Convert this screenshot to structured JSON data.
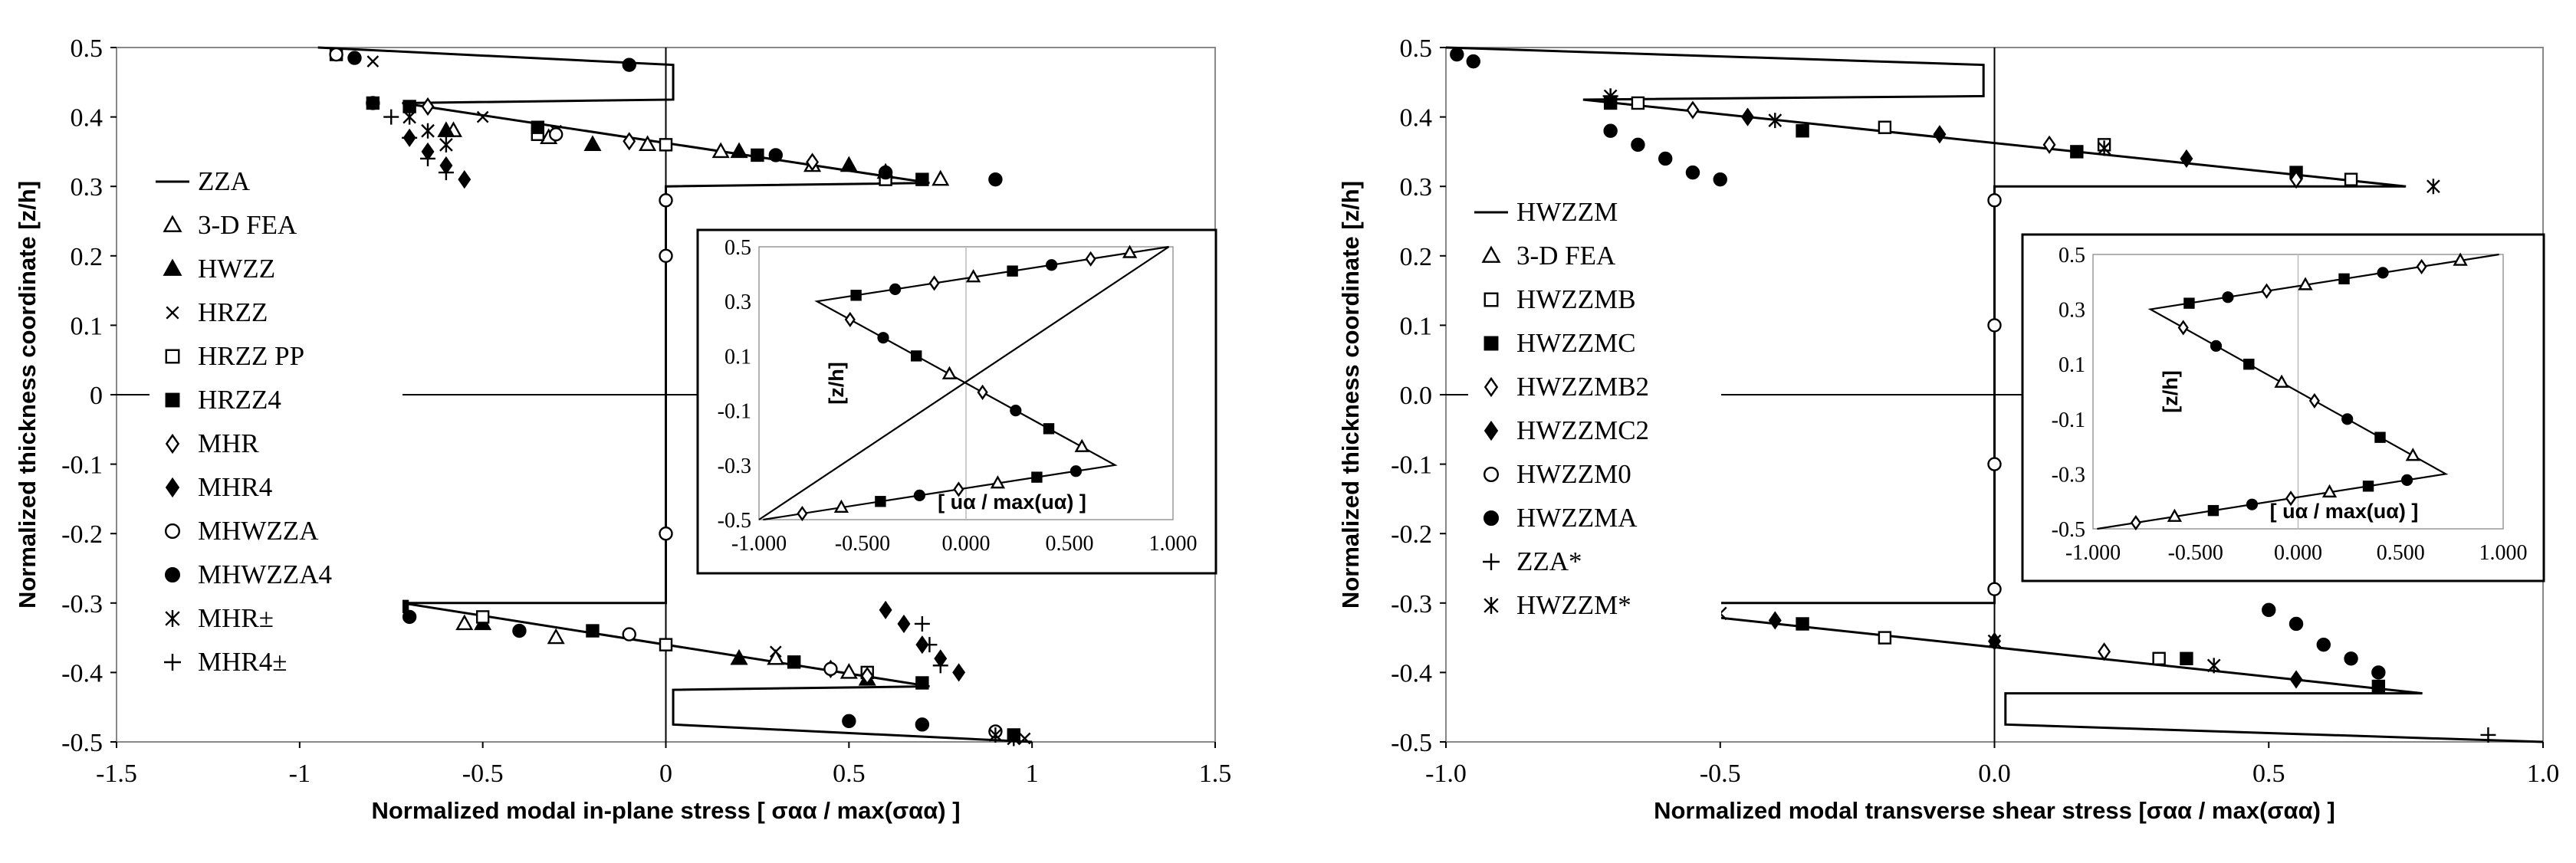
{
  "chart_data": [
    {
      "type": "scatter",
      "xlabel": "Normalized modal  in-plane stress",
      "xlabel_formula": "[ σαα / max(σαα) ]",
      "ylabel": "Normalized thickness coordinate [z/h]",
      "xlim": [
        -1.5,
        1.5
      ],
      "ylim": [
        -0.5,
        0.5
      ],
      "xticks": [
        "-1.5",
        "-1",
        "-0.5",
        "0",
        "0.5",
        "1",
        "1.5"
      ],
      "yticks": [
        "0.5",
        "0.4",
        "0.3",
        "0.2",
        "0.1",
        "0",
        "-0.1",
        "-0.2",
        "-0.3",
        "-0.4",
        "-0.5"
      ],
      "legend": [
        "ZZA",
        "3-D FEA",
        "HWZZ",
        "HRZZ",
        "HRZZ PP",
        "HRZZ4",
        "MHR",
        "MHR4",
        "MHWZZA",
        "MHWZZA4",
        "MHR±",
        "MHR4±"
      ],
      "legend_markers": [
        "line",
        "tri-open",
        "tri-filled",
        "x",
        "square-open",
        "square-filled",
        "diamond-open",
        "diamond-filled",
        "circle-open",
        "circle-filled",
        "star",
        "plus"
      ],
      "legend_placement": "left",
      "series": [
        {
          "name": "ZZA",
          "points": [
            [
              -0.95,
              0.5
            ],
            [
              0.02,
              0.475
            ],
            [
              0.02,
              0.425
            ],
            [
              -0.72,
              0.42
            ],
            [
              0.72,
              0.305
            ],
            [
              0.0,
              0.3
            ],
            [
              0.0,
              -0.3
            ],
            [
              -0.72,
              -0.3
            ],
            [
              0.72,
              -0.42
            ],
            [
              0.02,
              -0.425
            ],
            [
              0.02,
              -0.475
            ],
            [
              1.0,
              -0.5
            ]
          ]
        },
        {
          "name": "3-D FEA",
          "points": [
            [
              -0.58,
              0.38
            ],
            [
              -0.32,
              0.37
            ],
            [
              -0.05,
              0.36
            ],
            [
              0.15,
              0.35
            ],
            [
              0.4,
              0.33
            ],
            [
              0.6,
              0.32
            ],
            [
              0.75,
              0.31
            ],
            [
              -0.55,
              -0.33
            ],
            [
              -0.3,
              -0.35
            ],
            [
              0.3,
              -0.38
            ],
            [
              0.5,
              -0.4
            ]
          ]
        },
        {
          "name": "HWZZ",
          "points": [
            [
              -0.6,
              0.38
            ],
            [
              -0.2,
              0.36
            ],
            [
              0.2,
              0.35
            ],
            [
              0.5,
              0.33
            ],
            [
              -0.5,
              -0.33
            ],
            [
              0.2,
              -0.38
            ],
            [
              0.55,
              -0.41
            ]
          ]
        },
        {
          "name": "HRZZ",
          "points": [
            [
              -0.9,
              0.49
            ],
            [
              -0.8,
              0.48
            ],
            [
              -0.5,
              0.4
            ],
            [
              -0.3,
              0.38
            ],
            [
              0.3,
              -0.37
            ],
            [
              0.9,
              -0.49
            ],
            [
              0.98,
              -0.495
            ]
          ]
        },
        {
          "name": "HRZZ PP",
          "points": [
            [
              -0.8,
              0.42
            ],
            [
              -0.35,
              0.375
            ],
            [
              0.0,
              0.36
            ],
            [
              0.6,
              0.31
            ],
            [
              -0.75,
              -0.3
            ],
            [
              -0.5,
              -0.32
            ],
            [
              0.0,
              -0.36
            ],
            [
              0.55,
              -0.4
            ]
          ]
        },
        {
          "name": "HRZZ4",
          "points": [
            [
              -0.9,
              0.49
            ],
            [
              -0.7,
              0.415
            ],
            [
              -0.35,
              0.385
            ],
            [
              0.25,
              0.345
            ],
            [
              0.7,
              0.31
            ],
            [
              -0.72,
              -0.305
            ],
            [
              -0.2,
              -0.34
            ],
            [
              0.35,
              -0.385
            ],
            [
              0.7,
              -0.415
            ],
            [
              0.95,
              -0.49
            ]
          ]
        },
        {
          "name": "MHR",
          "points": [
            [
              -0.65,
              0.415
            ],
            [
              -0.1,
              0.365
            ],
            [
              0.4,
              0.335
            ],
            [
              0.55,
              -0.405
            ],
            [
              0.45,
              -0.395
            ]
          ]
        },
        {
          "name": "MHR4",
          "points": [
            [
              -0.55,
              0.31
            ],
            [
              -0.6,
              0.33
            ],
            [
              -0.65,
              0.35
            ],
            [
              -0.7,
              0.37
            ],
            [
              0.6,
              -0.31
            ],
            [
              0.65,
              -0.33
            ],
            [
              0.7,
              -0.36
            ],
            [
              0.75,
              -0.38
            ],
            [
              0.8,
              -0.4
            ]
          ]
        },
        {
          "name": "MHWZZA",
          "points": [
            [
              -0.9,
              0.49
            ],
            [
              -0.3,
              0.375
            ],
            [
              0.0,
              0.28
            ],
            [
              0.0,
              0.2
            ],
            [
              0.0,
              -0.2
            ],
            [
              -0.1,
              -0.345
            ],
            [
              0.45,
              -0.395
            ],
            [
              0.9,
              -0.485
            ]
          ]
        },
        {
          "name": "MHWZZA4",
          "points": [
            [
              -0.8,
              0.42
            ],
            [
              -0.85,
              0.485
            ],
            [
              -0.1,
              0.475
            ],
            [
              0.3,
              0.345
            ],
            [
              0.6,
              0.32
            ],
            [
              0.9,
              0.31
            ],
            [
              -0.7,
              -0.32
            ],
            [
              -0.4,
              -0.34
            ],
            [
              0.5,
              -0.47
            ],
            [
              0.7,
              -0.475
            ]
          ]
        },
        {
          "name": "MHR±",
          "points": [
            [
              -0.7,
              0.4
            ],
            [
              -0.65,
              0.38
            ],
            [
              -0.6,
              0.36
            ],
            [
              0.9,
              -0.49
            ],
            [
              0.95,
              -0.495
            ]
          ]
        },
        {
          "name": "MHR4±",
          "points": [
            [
              -0.75,
              0.4
            ],
            [
              -0.7,
              0.37
            ],
            [
              -0.65,
              0.34
            ],
            [
              -0.6,
              0.32
            ],
            [
              0.7,
              -0.33
            ],
            [
              0.72,
              -0.36
            ],
            [
              0.75,
              -0.39
            ]
          ]
        }
      ],
      "inset": {
        "xlabel": "[ uα / max(uα) ]",
        "ylabel": "[z/h]",
        "xlim": [
          -1.0,
          1.0
        ],
        "ylim": [
          -0.5,
          0.5
        ],
        "xticks": [
          "-1.000",
          "-0.500",
          "0.000",
          "0.500",
          "1.000"
        ],
        "yticks": [
          "0.5",
          "0.3",
          "0.1",
          "-0.1",
          "-0.3",
          "-0.5"
        ],
        "curves": [
          {
            "name": "ZZA",
            "points": [
              [
                0.98,
                0.5
              ],
              [
                -0.72,
                0.3
              ],
              [
                0.72,
                -0.3
              ],
              [
                -0.98,
                -0.5
              ]
            ]
          },
          {
            "name": "MHWZZA",
            "points": [
              [
                0.98,
                0.5
              ],
              [
                -1.0,
                -0.5
              ]
            ]
          }
        ]
      }
    },
    {
      "type": "scatter",
      "xlabel": "Normalized modal transverse shear stress",
      "xlabel_formula": "[σαα / max(σαα) ]",
      "ylabel": "Normalized thickness coordinate [z/h]",
      "xlim": [
        -1.0,
        1.0
      ],
      "ylim": [
        -0.5,
        0.5
      ],
      "xticks": [
        "-1.0",
        "-0.5",
        "0.0",
        "0.5",
        "1.0"
      ],
      "yticks": [
        "0.5",
        "0.4",
        "0.3",
        "0.2",
        "0.1",
        "0.0",
        "-0.1",
        "-0.2",
        "-0.3",
        "-0.4",
        "-0.5"
      ],
      "legend": [
        "HWZZM",
        "3-D FEA",
        "HWZZMB",
        "HWZZMC",
        "HWZZMB2",
        "HWZZMC2",
        "HWZZM0",
        "HWZZMA",
        "ZZA*",
        "HWZZM*"
      ],
      "legend_markers": [
        "line",
        "tri-open",
        "square-open",
        "square-filled",
        "diamond-open",
        "diamond-filled",
        "circle-open",
        "circle-filled",
        "plus",
        "star"
      ],
      "legend_placement": "left",
      "series": [
        {
          "name": "HWZZM",
          "points": [
            [
              -1.0,
              0.5
            ],
            [
              -0.02,
              0.475
            ],
            [
              -0.02,
              0.43
            ],
            [
              -0.75,
              0.425
            ],
            [
              0.75,
              0.3
            ],
            [
              0.0,
              0.3
            ],
            [
              0.0,
              -0.3
            ],
            [
              -0.75,
              -0.3
            ],
            [
              0.78,
              -0.43
            ],
            [
              0.02,
              -0.43
            ],
            [
              0.02,
              -0.475
            ],
            [
              1.0,
              -0.5
            ]
          ]
        },
        {
          "name": "HWZZMB",
          "points": [
            [
              -0.65,
              0.42
            ],
            [
              -0.2,
              0.385
            ],
            [
              0.2,
              0.36
            ],
            [
              0.65,
              0.31
            ],
            [
              -0.7,
              -0.3
            ],
            [
              -0.2,
              -0.35
            ],
            [
              0.3,
              -0.38
            ]
          ]
        },
        {
          "name": "HWZZMC",
          "points": [
            [
              -0.7,
              0.42
            ],
            [
              -0.35,
              0.38
            ],
            [
              0.15,
              0.35
            ],
            [
              0.55,
              0.32
            ],
            [
              -0.75,
              -0.3
            ],
            [
              -0.35,
              -0.33
            ],
            [
              0.35,
              -0.38
            ],
            [
              0.7,
              -0.42
            ]
          ]
        },
        {
          "name": "HWZZMB2",
          "points": [
            [
              -0.55,
              0.41
            ],
            [
              0.1,
              0.36
            ],
            [
              0.55,
              0.31
            ],
            [
              -0.6,
              -0.315
            ],
            [
              0.2,
              -0.37
            ]
          ]
        },
        {
          "name": "HWZZMC2",
          "points": [
            [
              -0.45,
              0.4
            ],
            [
              -0.1,
              0.375
            ],
            [
              0.35,
              0.34
            ],
            [
              -0.4,
              -0.325
            ],
            [
              0.0,
              -0.355
            ],
            [
              0.55,
              -0.41
            ]
          ]
        },
        {
          "name": "HWZZM0",
          "points": [
            [
              0.0,
              0.28
            ],
            [
              0.0,
              -0.28
            ],
            [
              0.0,
              0.1
            ],
            [
              0.0,
              -0.1
            ]
          ]
        },
        {
          "name": "HWZZMA",
          "points": [
            [
              -0.98,
              0.49
            ],
            [
              -0.95,
              0.48
            ],
            [
              -0.7,
              0.38
            ],
            [
              -0.65,
              0.36
            ],
            [
              -0.6,
              0.34
            ],
            [
              -0.55,
              0.32
            ],
            [
              -0.5,
              0.31
            ],
            [
              0.5,
              -0.31
            ],
            [
              0.55,
              -0.33
            ],
            [
              0.6,
              -0.36
            ],
            [
              0.65,
              -0.38
            ],
            [
              0.7,
              -0.4
            ]
          ]
        },
        {
          "name": "ZZA*",
          "points": [
            [
              -0.7,
              0.43
            ],
            [
              0.9,
              -0.49
            ]
          ]
        },
        {
          "name": "HWZZM*",
          "points": [
            [
              -0.7,
              0.43
            ],
            [
              -0.4,
              0.395
            ],
            [
              0.2,
              0.355
            ],
            [
              0.8,
              0.3
            ],
            [
              -0.5,
              -0.315
            ],
            [
              0.0,
              -0.355
            ],
            [
              0.4,
              -0.39
            ]
          ]
        }
      ],
      "inset": {
        "xlabel": "[ uα / max(uα) ]",
        "ylabel": "[z/h]",
        "xlim": [
          -1.0,
          1.0
        ],
        "ylim": [
          -0.5,
          0.5
        ],
        "xticks": [
          "-1.000",
          "-0.500",
          "0.000",
          "0.500",
          "1.000"
        ],
        "yticks": [
          "0.5",
          "0.3",
          "0.1",
          "-0.1",
          "-0.3",
          "-0.5"
        ],
        "curves": [
          {
            "name": "HWZZM",
            "points": [
              [
                0.98,
                0.5
              ],
              [
                -0.72,
                0.3
              ],
              [
                0.72,
                -0.3
              ],
              [
                -0.98,
                -0.5
              ]
            ]
          }
        ]
      }
    }
  ]
}
